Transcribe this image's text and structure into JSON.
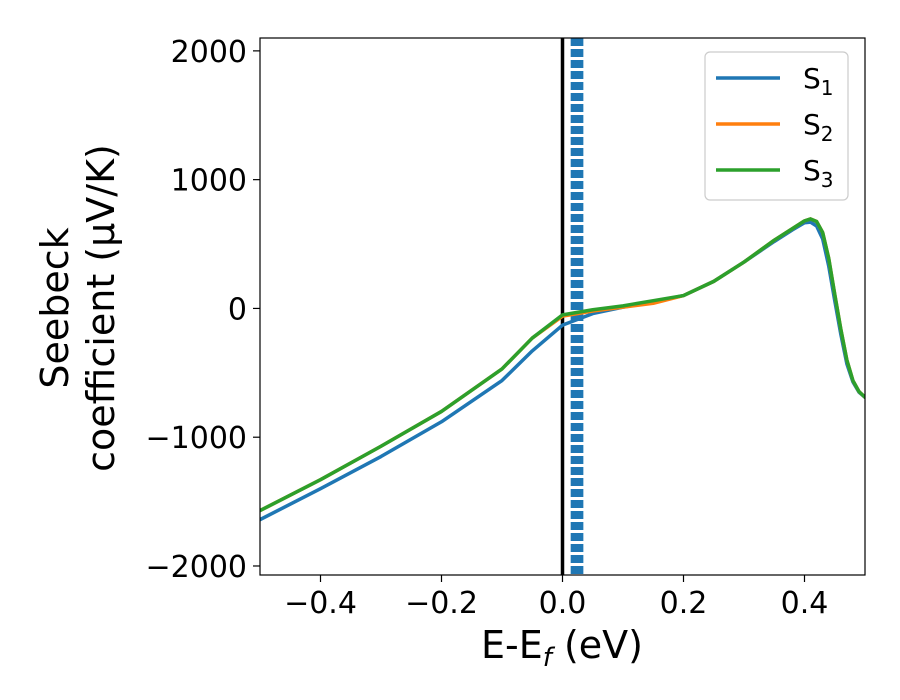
{
  "chart_data": {
    "type": "line",
    "xlabel": "E-E",
    "xlabel_sub": "f",
    "xlabel_unit": " (eV)",
    "ylabel_line1": "Seebeck",
    "ylabel_line2": "coefficient  (μV/K)",
    "xlim": [
      -0.5,
      0.5
    ],
    "ylim": [
      -2070,
      2100
    ],
    "xticks": [
      -0.4,
      -0.2,
      0.0,
      0.2,
      0.4
    ],
    "xtick_labels": [
      "−0.4",
      "−0.2",
      "0.0",
      "0.2",
      "0.4"
    ],
    "yticks": [
      -2000,
      -1000,
      0,
      1000,
      2000
    ],
    "ytick_labels": [
      "−2000",
      "−1000",
      "0",
      "1000",
      "2000"
    ],
    "grid": false,
    "legend_position": "top-right",
    "reference_lines": {
      "fermi_level_x": 0.0,
      "fermi_level_color": "#000000",
      "dashed_x": [
        0.016,
        0.02,
        0.024,
        0.028,
        0.032
      ],
      "dashed_color": "#1f77b4"
    },
    "series": [
      {
        "name": "S",
        "name_sub": "1",
        "color": "#1f77b4",
        "x": [
          -0.5,
          -0.4,
          -0.3,
          -0.2,
          -0.1,
          -0.05,
          0.0,
          0.05,
          0.1,
          0.15,
          0.2,
          0.25,
          0.3,
          0.35,
          0.38,
          0.4,
          0.41,
          0.42,
          0.43,
          0.44,
          0.45,
          0.46,
          0.47,
          0.48,
          0.49,
          0.5
        ],
        "y": [
          -1640,
          -1400,
          -1150,
          -880,
          -560,
          -330,
          -130,
          -40,
          10,
          50,
          100,
          210,
          360,
          520,
          610,
          665,
          670,
          640,
          540,
          330,
          60,
          -200,
          -430,
          -570,
          -650,
          -690
        ]
      },
      {
        "name": "S",
        "name_sub": "2",
        "color": "#ff7f0e",
        "x": [
          -0.5,
          -0.4,
          -0.3,
          -0.2,
          -0.1,
          -0.05,
          0.0,
          0.05,
          0.1,
          0.15,
          0.2,
          0.25,
          0.3,
          0.35,
          0.38,
          0.4,
          0.41,
          0.42,
          0.43,
          0.44,
          0.45,
          0.46,
          0.47,
          0.48,
          0.49,
          0.5
        ],
        "y": [
          -1570,
          -1330,
          -1070,
          -800,
          -470,
          -230,
          -60,
          -20,
          10,
          40,
          100,
          210,
          360,
          530,
          620,
          680,
          695,
          675,
          590,
          390,
          110,
          -160,
          -400,
          -560,
          -645,
          -690
        ]
      },
      {
        "name": "S",
        "name_sub": "3",
        "color": "#2ca02c",
        "x": [
          -0.5,
          -0.4,
          -0.3,
          -0.2,
          -0.1,
          -0.05,
          0.0,
          0.05,
          0.1,
          0.15,
          0.2,
          0.25,
          0.3,
          0.35,
          0.38,
          0.4,
          0.41,
          0.42,
          0.43,
          0.44,
          0.45,
          0.46,
          0.47,
          0.48,
          0.49,
          0.5
        ],
        "y": [
          -1570,
          -1330,
          -1070,
          -800,
          -470,
          -230,
          -50,
          -10,
          20,
          60,
          100,
          210,
          360,
          530,
          620,
          680,
          695,
          675,
          590,
          390,
          110,
          -160,
          -400,
          -560,
          -645,
          -690
        ]
      }
    ]
  }
}
